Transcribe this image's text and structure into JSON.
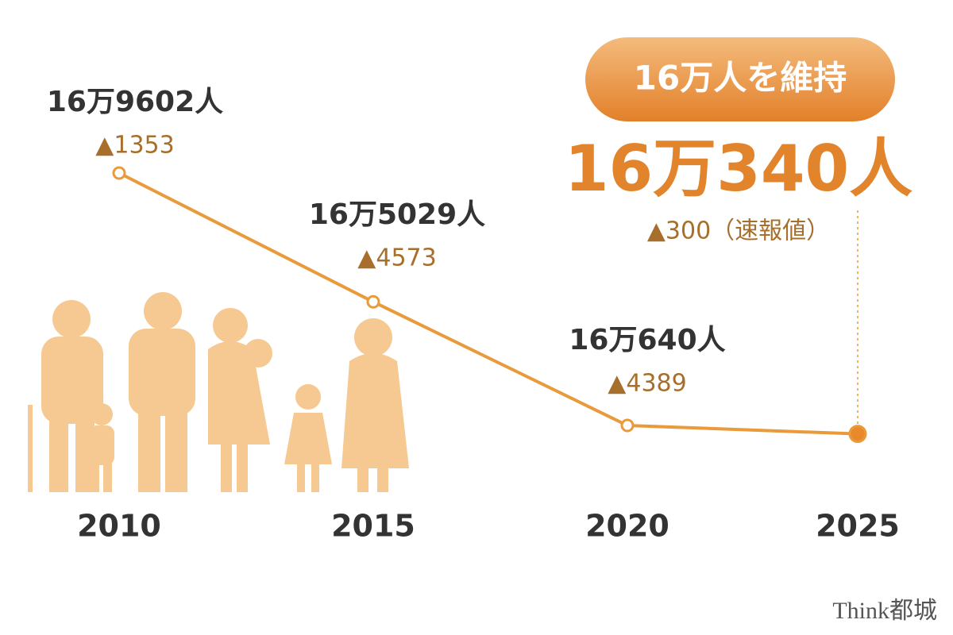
{
  "chart_data": {
    "type": "line",
    "categories": [
      "2010",
      "2015",
      "2020",
      "2025"
    ],
    "series": [
      {
        "color": "#e99a3a",
        "values": [
          169602,
          165029,
          160640,
          160340
        ],
        "value_labels": [
          "16万9602人",
          "16万5029人",
          "16万640人",
          "16万340人"
        ]
      }
    ],
    "annotations": [
      "▲1353",
      "▲4573",
      "▲4389",
      "▲300（速報値）"
    ],
    "badge": "16万人を維持",
    "ylim": [
      150000,
      175000
    ]
  },
  "watermark": "Think都城"
}
